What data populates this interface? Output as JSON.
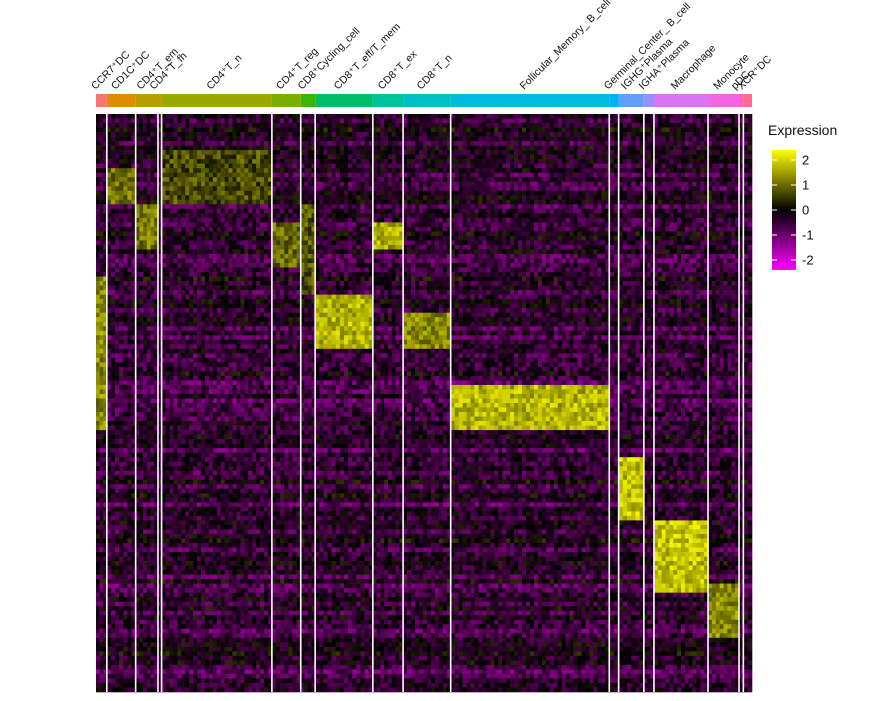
{
  "chart_data": {
    "type": "heatmap",
    "title": "",
    "legend": {
      "title": "Expression",
      "ticks": [
        "2",
        "1",
        "0",
        "-1",
        "-2"
      ],
      "tick_values": [
        2,
        1,
        0,
        -1,
        -2
      ],
      "range": [
        -2.4,
        2.4
      ],
      "placement": "right",
      "colors": [
        "#ff00ff",
        "#000000",
        "#ffff00"
      ]
    },
    "clusters": [
      {
        "label": "CCR7⁺DC",
        "color": "#f8766d",
        "weight": 1.5
      },
      {
        "label": "CD1C⁺DC",
        "color": "#de8c00",
        "weight": 4
      },
      {
        "label": "CD4⁺T_em",
        "color": "#b79f00",
        "weight": 3.1
      },
      {
        "label": "CD4⁺T_fh",
        "color": "#b79f00",
        "weight": 0.5
      },
      {
        "label": "CD4⁺T_n",
        "color": "#9aa800",
        "weight": 15.3
      },
      {
        "label": "CD4⁺T_reg",
        "color": "#7cae00",
        "weight": 4
      },
      {
        "label": "CD8⁺Cycling_cell",
        "color": "#39b600",
        "weight": 2
      },
      {
        "label": "CD8⁺T_eff/T_mem",
        "color": "#00be67",
        "weight": 8
      },
      {
        "label": "CD8⁺T_ex",
        "color": "#00c19a",
        "weight": 4.2
      },
      {
        "label": "CD8⁺T_n",
        "color": "#00bfc4",
        "weight": 6.6
      },
      {
        "label": "Follicular_Memory_ B_cell",
        "color": "#00b9e3",
        "weight": 22
      },
      {
        "label": "Germinal_Center_ B_cell",
        "color": "#00b0f6",
        "weight": 1.3
      },
      {
        "label": "IGHG⁺Plasma",
        "color": "#619cff",
        "weight": 3.5
      },
      {
        "label": "IGHA⁺Plasma",
        "color": "#9590ff",
        "weight": 1.4
      },
      {
        "label": "Macrophage",
        "color": "#db72fb",
        "weight": 7.5
      },
      {
        "label": "Monocyte",
        "color": "#f564e3",
        "weight": 4.3
      },
      {
        "label": "pDC",
        "color": "#ff64b0",
        "weight": 0.6
      },
      {
        "label": "XCR⁺DC",
        "color": "#ff6c91",
        "weight": 1.2
      }
    ],
    "gene_rows": 128,
    "cluster_marker_blocks": [
      {
        "cluster": "CCR7⁺DC",
        "rows": [
          36,
          70
        ],
        "level": 1.8
      },
      {
        "cluster": "CD1C⁺DC",
        "rows": [
          12,
          20
        ],
        "level": 1.6
      },
      {
        "cluster": "CD4⁺T_em",
        "rows": [
          20,
          30
        ],
        "level": 1.6
      },
      {
        "cluster": "CD4⁺T_n",
        "rows": [
          8,
          20
        ],
        "level": 1.2
      },
      {
        "cluster": "CD4⁺T_reg",
        "rows": [
          24,
          34
        ],
        "level": 1.5
      },
      {
        "cluster": "CD8⁺Cycling_cell",
        "rows": [
          20,
          40
        ],
        "level": 1.3
      },
      {
        "cluster": "CD8⁺T_eff/T_mem",
        "rows": [
          40,
          52
        ],
        "level": 2.2
      },
      {
        "cluster": "CD8⁺T_ex",
        "rows": [
          24,
          30
        ],
        "level": 2.1
      },
      {
        "cluster": "CD8⁺T_n",
        "rows": [
          44,
          52
        ],
        "level": 1.8
      },
      {
        "cluster": "Follicular_Memory_ B_cell",
        "rows": [
          60,
          70
        ],
        "level": 2.2
      },
      {
        "cluster": "IGHG⁺Plasma",
        "rows": [
          76,
          90
        ],
        "level": 2.3
      },
      {
        "cluster": "Macrophage",
        "rows": [
          90,
          106
        ],
        "level": 2.3
      },
      {
        "cluster": "Monocyte",
        "rows": [
          104,
          116
        ],
        "level": 1.8
      }
    ]
  }
}
